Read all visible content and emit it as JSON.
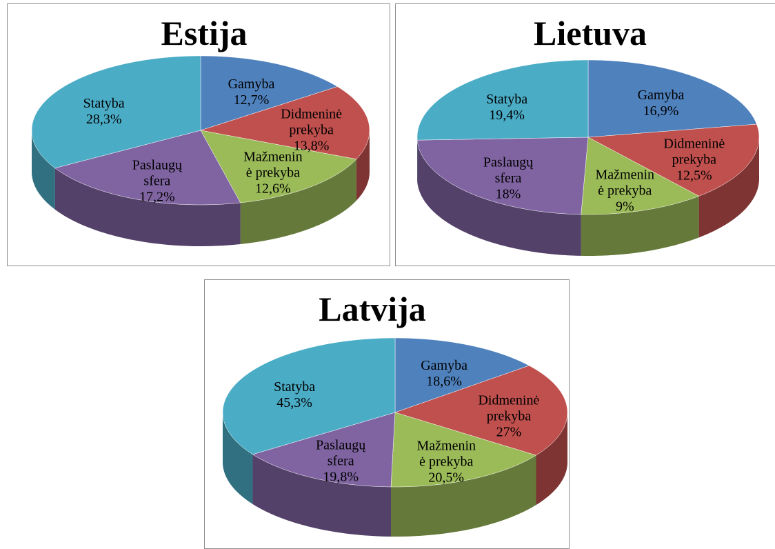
{
  "chart_data": [
    {
      "type": "pie3d",
      "title": "Estija",
      "categories": [
        "Gamyba",
        "Didmeninė prekyba",
        "Mažmeninė prekyba",
        "Paslaugų sfera",
        "Statyba"
      ],
      "values": [
        12.7,
        13.8,
        12.6,
        17.2,
        28.3
      ],
      "value_labels": [
        "12,7%",
        "13,8%",
        "12,6%",
        "17,2%",
        "28,3%"
      ],
      "colors": [
        "#4f81bd",
        "#c0504d",
        "#9bbb59",
        "#8064a2",
        "#4bacc6"
      ]
    },
    {
      "type": "pie3d",
      "title": "Lietuva",
      "categories": [
        "Gamyba",
        "Didmeninė prekyba",
        "Mažmeninė prekyba",
        "Paslaugų sfera",
        "Statyba"
      ],
      "values": [
        16.9,
        12.5,
        9,
        18,
        19.4
      ],
      "value_labels": [
        "16,9%",
        "12,5%",
        "9%",
        "18%",
        "19,4%"
      ],
      "colors": [
        "#4f81bd",
        "#c0504d",
        "#9bbb59",
        "#8064a2",
        "#4bacc6"
      ]
    },
    {
      "type": "pie3d",
      "title": "Latvija",
      "categories": [
        "Gamyba",
        "Didmeninė prekyba",
        "Mažmeninė prekyba",
        "Paslaugų sfera",
        "Statyba"
      ],
      "values": [
        18.6,
        27,
        20.5,
        19.8,
        45.3
      ],
      "value_labels": [
        "18,6%",
        "27%",
        "20,5%",
        "19,8%",
        "45,3%"
      ],
      "colors": [
        "#4f81bd",
        "#c0504d",
        "#9bbb59",
        "#8064a2",
        "#4bacc6"
      ]
    }
  ]
}
